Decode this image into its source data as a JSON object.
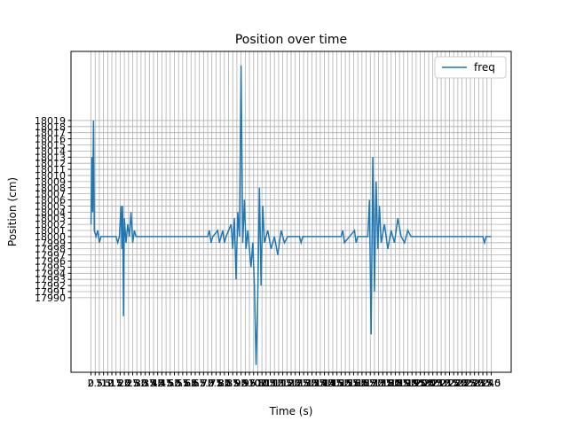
{
  "chart_data": {
    "type": "line",
    "title": "Position over time",
    "x_label": "Time (s)",
    "y_label": "Position (cm)",
    "series": [
      {
        "name": "freq",
        "color": "#1f77b4",
        "x": [
          0,
          0.5,
          1,
          1.5,
          2,
          3,
          4,
          5,
          6,
          15,
          16,
          17,
          18,
          18.5,
          19,
          19.5,
          20,
          21,
          22,
          23,
          24,
          25,
          26,
          27,
          70,
          71,
          72,
          73,
          76,
          77,
          79,
          80,
          81,
          84,
          85,
          86,
          87,
          88,
          89,
          90,
          91,
          92,
          93,
          94,
          96,
          97,
          98,
          99,
          100,
          101,
          102,
          103,
          104,
          106,
          108,
          110,
          112,
          114,
          116,
          118,
          125,
          126,
          127,
          150,
          151,
          152,
          155,
          158,
          159,
          160,
          166,
          167,
          168,
          169,
          170,
          171,
          172,
          173,
          174,
          176,
          178,
          180,
          182,
          184,
          186,
          188,
          190,
          192,
          235,
          236,
          237,
          240
        ],
        "values": [
          18002,
          18013,
          18004,
          18019,
          18001,
          18000,
          18001,
          17999,
          18000,
          18000,
          17999,
          18000,
          18005,
          17998,
          18005,
          17987,
          18003,
          17999,
          18002,
          18000,
          18004,
          17999,
          18001,
          18000,
          18000,
          18001,
          17999,
          18000,
          18001,
          17999,
          18001,
          17999,
          18000,
          18002,
          17998,
          18003,
          17993,
          18004,
          18000,
          18028,
          17999,
          18006,
          17998,
          18001,
          17995,
          17999,
          17992,
          17979,
          17990,
          18008,
          17992,
          18005,
          17999,
          18001,
          17998,
          18000,
          17997,
          18001,
          17999,
          18000,
          18000,
          17999,
          18000,
          18000,
          18001,
          17999,
          18000,
          18001,
          17999,
          18000,
          18000,
          18006,
          17984,
          18013,
          17991,
          18009,
          17998,
          18005,
          17999,
          18002,
          17998,
          18001,
          17999,
          18003,
          18000,
          17999,
          18001,
          18000,
          18000,
          17999,
          18000,
          18000
        ]
      }
    ],
    "xlim": [
      -12,
      252
    ],
    "xticks": [
      0,
      2.5,
      5,
      7.5,
      10,
      12.5,
      15,
      17.5,
      20,
      22.5,
      25,
      27.5,
      30,
      32.5,
      35,
      37.5,
      40,
      42.5,
      45,
      47.5,
      50,
      52.5,
      55,
      57.5,
      60,
      62.5,
      65,
      67.5,
      70,
      72.5,
      75,
      77.5,
      80,
      82.5,
      85,
      87.5,
      90,
      92.5,
      95,
      97.5,
      100,
      102.5,
      105,
      107.5,
      110,
      112.5,
      115,
      117.5,
      120,
      122.5,
      125,
      127.5,
      130,
      132.5,
      135,
      137.5,
      140,
      142.5,
      145,
      147.5,
      150,
      152.5,
      155,
      157.5,
      160,
      162.5,
      165,
      167.5,
      170,
      172.5,
      175,
      177.5,
      180,
      182.5,
      185,
      187.5,
      190,
      192.5,
      195,
      197.5,
      200,
      202.5,
      205,
      207.5,
      210,
      212.5,
      215,
      217.5,
      220,
      222.5,
      225,
      227.5,
      230,
      232.5,
      235,
      237.5,
      240
    ],
    "ylim": [
      17977.8,
      18030.3
    ],
    "yticks": [
      17990,
      17991,
      17992,
      17993,
      17994,
      17995,
      17996,
      17997,
      17998,
      17999,
      18000,
      18001,
      18002,
      18003,
      18004,
      18005,
      18006,
      18007,
      18008,
      18009,
      18010,
      18011,
      18012,
      18013,
      18014,
      18015,
      18016,
      18017,
      18018,
      18019
    ],
    "grid": true,
    "legend": "upper right"
  }
}
